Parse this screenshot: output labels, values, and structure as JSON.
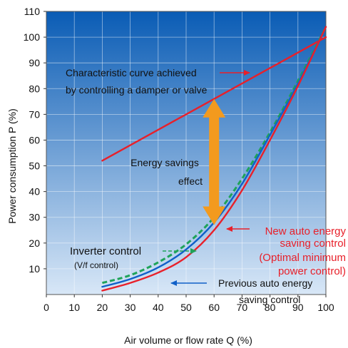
{
  "chart_data": {
    "type": "line",
    "xlabel": "Air volume or flow rate Q (%)",
    "ylabel": "Power consumption P (%)",
    "xlim": [
      0,
      100
    ],
    "ylim": [
      0,
      110
    ],
    "x_ticks": [
      0,
      10,
      20,
      30,
      40,
      50,
      60,
      70,
      80,
      90,
      100
    ],
    "y_ticks": [
      10,
      20,
      30,
      40,
      50,
      60,
      70,
      80,
      90,
      100,
      110
    ],
    "grid": true,
    "series": [
      {
        "name": "Characteristic curve achieved by controlling a damper or valve",
        "color": "#e8202a",
        "style": "solid",
        "x": [
          20,
          100
        ],
        "y": [
          52,
          100
        ]
      },
      {
        "name": "Inverter control (V/f control)",
        "color": "#1fa35a",
        "style": "dashed",
        "x": [
          20,
          30,
          40,
          50,
          60,
          70,
          80,
          90,
          100
        ],
        "y": [
          4.5,
          7.5,
          12.5,
          19.5,
          30,
          45,
          63,
          83,
          104
        ]
      },
      {
        "name": "Previous auto energy saving control",
        "color": "#1060c8",
        "style": "solid",
        "x": [
          20,
          30,
          40,
          50,
          60,
          70,
          80,
          90,
          100
        ],
        "y": [
          3,
          6,
          10.5,
          17.5,
          28,
          43,
          62,
          82,
          104
        ]
      },
      {
        "name": "New auto energy saving control (Optimal minimum power control)",
        "color": "#e8202a",
        "style": "solid",
        "x": [
          20,
          30,
          40,
          50,
          60,
          70,
          80,
          90,
          100
        ],
        "y": [
          1.5,
          4.5,
          8.5,
          14.5,
          25,
          40.5,
          60,
          81,
          104
        ]
      }
    ],
    "annotations": {
      "damper_label": [
        "Characteristic curve achieved",
        "by controlling a damper or valve"
      ],
      "savings_label": [
        "Energy savings",
        "effect"
      ],
      "inverter_label": "Inverter control",
      "inverter_sublabel": "(V/f control)",
      "new_label": [
        "New auto energy",
        "saving control",
        "(Optimal minimum",
        "power control)"
      ],
      "previous_label": [
        "Previous auto energy",
        "saving control"
      ]
    },
    "savings_arrow": {
      "x": 60,
      "y_top": 76,
      "y_bottom": 27,
      "color": "#f39a1e"
    },
    "plot_background": {
      "top": "#0a5cb5",
      "bottom": "#d8e7f7"
    }
  }
}
